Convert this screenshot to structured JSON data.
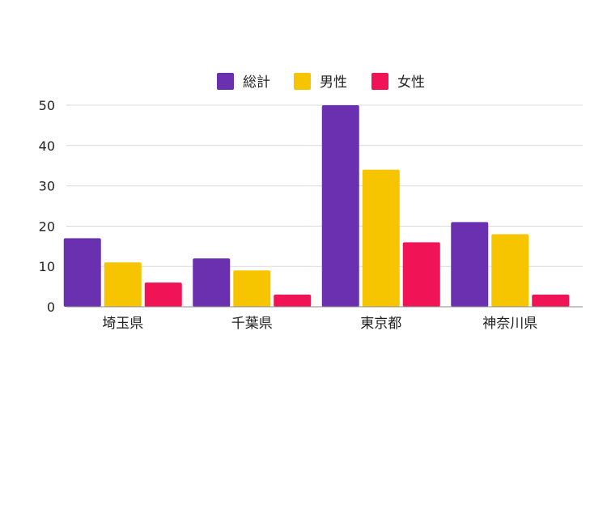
{
  "chart_data": {
    "type": "bar",
    "categories": [
      "埼玉県",
      "千葉県",
      "東京都",
      "神奈川県"
    ],
    "series": [
      {
        "name": "総計",
        "values": [
          17,
          12,
          50,
          21
        ],
        "color": "#6a30b0"
      },
      {
        "name": "男性",
        "values": [
          11,
          9,
          34,
          18
        ],
        "color": "#f7c400"
      },
      {
        "name": "女性",
        "values": [
          6,
          3,
          16,
          3
        ],
        "color": "#f01457"
      }
    ],
    "yticks": [
      0,
      10,
      20,
      30,
      40,
      50
    ],
    "ylim": [
      0,
      50
    ],
    "title": "",
    "xlabel": "",
    "ylabel": "",
    "grid": true,
    "legend_position": "top-center"
  }
}
